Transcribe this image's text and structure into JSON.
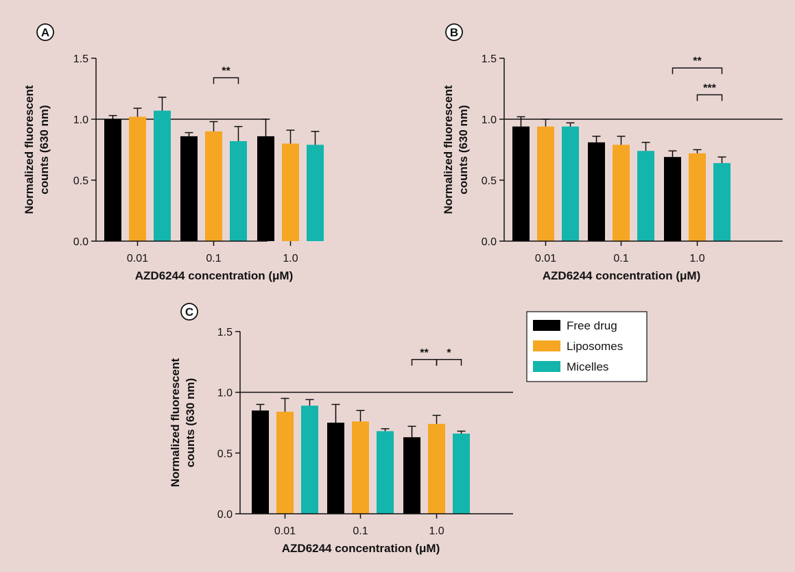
{
  "colors": {
    "background": "#e9d6d3",
    "axis": "#111111",
    "free_drug": "#000000",
    "liposomes": "#f5a623",
    "micelles": "#13b5ad"
  },
  "legend": {
    "items": [
      {
        "label": "Free drug",
        "color": "#000000"
      },
      {
        "label": "Liposomes",
        "color": "#f5a623"
      },
      {
        "label": "Micelles",
        "color": "#13b5ad"
      }
    ]
  },
  "chart_data": [
    {
      "panel": "A",
      "type": "bar",
      "categories": [
        "0.01",
        "0.1",
        "1.0"
      ],
      "xlabel": "AZD6244 concentration (μM)",
      "ylabel_lines": [
        "Normalized fluorescent",
        "counts (630 nm)"
      ],
      "ylim": [
        0,
        1.5
      ],
      "yticks": [
        "0.0",
        "0.5",
        "1.0",
        "1.5"
      ],
      "reference_line": 1.0,
      "series": [
        {
          "name": "Free drug",
          "values": [
            1.0,
            0.86,
            0.86
          ],
          "errors": [
            0.03,
            0.03,
            0.14
          ]
        },
        {
          "name": "Liposomes",
          "values": [
            1.02,
            0.9,
            0.8
          ],
          "errors": [
            0.07,
            0.08,
            0.11
          ]
        },
        {
          "name": "Micelles",
          "values": [
            1.07,
            0.82,
            0.79
          ],
          "errors": [
            0.11,
            0.12,
            0.11
          ]
        }
      ],
      "significance": [
        {
          "category": 1,
          "from": 1,
          "to": 2,
          "label": "**",
          "level": 1.34
        }
      ]
    },
    {
      "panel": "B",
      "type": "bar",
      "categories": [
        "0.01",
        "0.1",
        "1.0"
      ],
      "xlabel": "AZD6244 concentration (μM)",
      "ylabel_lines": [
        "Normalized fluorescent",
        "counts (630 nm)"
      ],
      "ylim": [
        0,
        1.5
      ],
      "yticks": [
        "0.0",
        "0.5",
        "1.0",
        "1.5"
      ],
      "reference_line": 1.0,
      "series": [
        {
          "name": "Free drug",
          "values": [
            0.94,
            0.81,
            0.69
          ],
          "errors": [
            0.08,
            0.05,
            0.05
          ]
        },
        {
          "name": "Liposomes",
          "values": [
            0.94,
            0.79,
            0.72
          ],
          "errors": [
            0.06,
            0.07,
            0.03
          ]
        },
        {
          "name": "Micelles",
          "values": [
            0.94,
            0.74,
            0.64
          ],
          "errors": [
            0.03,
            0.07,
            0.05
          ]
        }
      ],
      "significance": [
        {
          "category": 2,
          "from": 0,
          "to": 2,
          "label": "**",
          "level": 1.42
        },
        {
          "category": 2,
          "from": 1,
          "to": 2,
          "label": "***",
          "level": 1.2
        }
      ]
    },
    {
      "panel": "C",
      "type": "bar",
      "categories": [
        "0.01",
        "0.1",
        "1.0"
      ],
      "xlabel": "AZD6244 concentration (μM)",
      "ylabel_lines": [
        "Normalized fluorescent",
        "counts (630 nm)"
      ],
      "ylim": [
        0,
        1.5
      ],
      "yticks": [
        "0.0",
        "0.5",
        "1.0",
        "1.5"
      ],
      "reference_line": 1.0,
      "series": [
        {
          "name": "Free drug",
          "values": [
            0.85,
            0.75,
            0.63
          ],
          "errors": [
            0.05,
            0.15,
            0.09
          ]
        },
        {
          "name": "Liposomes",
          "values": [
            0.84,
            0.76,
            0.74
          ],
          "errors": [
            0.11,
            0.09,
            0.07
          ]
        },
        {
          "name": "Micelles",
          "values": [
            0.89,
            0.68,
            0.66
          ],
          "errors": [
            0.05,
            0.02,
            0.02
          ]
        }
      ],
      "significance": [
        {
          "category": 2,
          "from": 0,
          "to": 1,
          "label": "**",
          "level": 1.27
        },
        {
          "category": 2,
          "from": 1,
          "to": 2,
          "label": "*",
          "level": 1.27
        }
      ]
    }
  ]
}
